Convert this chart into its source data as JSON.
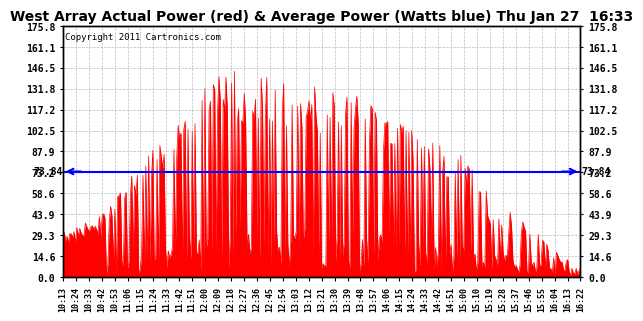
{
  "title": "West Array Actual Power (red) & Average Power (Watts blue) Thu Jan 27  16:33",
  "copyright": "Copyright 2011 Cartronics.com",
  "avg_power": 73.84,
  "yticks": [
    0.0,
    14.6,
    29.3,
    43.9,
    58.6,
    73.2,
    87.9,
    102.5,
    117.2,
    131.8,
    146.5,
    161.1,
    175.8
  ],
  "ylim": [
    0.0,
    175.8
  ],
  "fill_color": "red",
  "avg_line_color": "blue",
  "background_color": "#ffffff",
  "plot_bg_color": "#ffffff",
  "grid_color": "#aaaaaa",
  "title_color": "#000000",
  "title_fontsize": 10,
  "copyright_fontsize": 6.5,
  "xtick_labels": [
    "10:13",
    "10:24",
    "10:33",
    "10:42",
    "10:53",
    "11:06",
    "11:15",
    "11:24",
    "11:33",
    "11:42",
    "11:51",
    "12:00",
    "12:09",
    "12:18",
    "12:27",
    "12:36",
    "12:45",
    "12:54",
    "13:03",
    "13:12",
    "13:21",
    "13:30",
    "13:39",
    "13:48",
    "13:57",
    "14:06",
    "14:15",
    "14:24",
    "14:33",
    "14:42",
    "14:51",
    "15:00",
    "15:10",
    "15:19",
    "15:28",
    "15:37",
    "15:46",
    "15:55",
    "16:04",
    "16:13",
    "16:22"
  ]
}
